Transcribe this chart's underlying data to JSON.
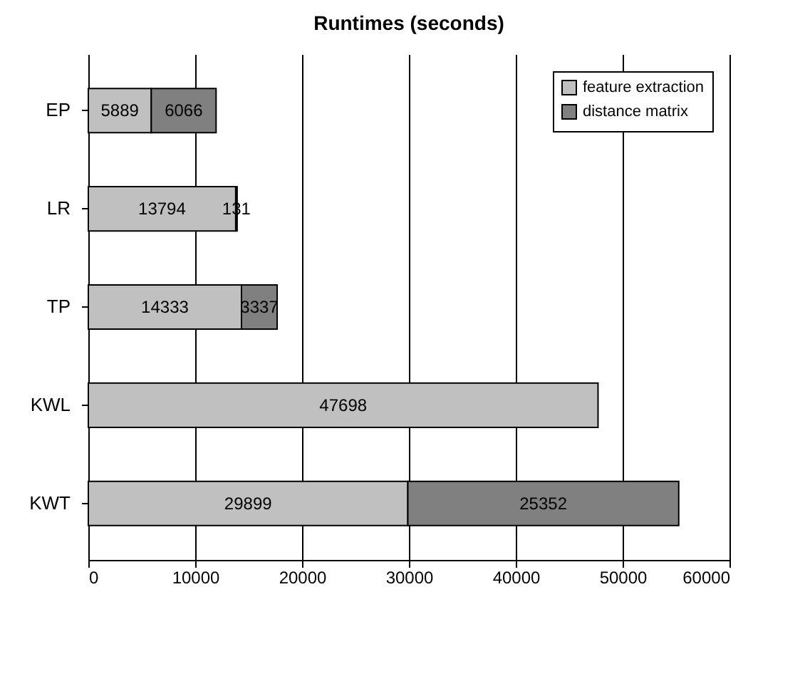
{
  "chart_data": {
    "type": "bar",
    "title": "Runtimes (seconds)",
    "orientation": "horizontal",
    "stacked": true,
    "categories": [
      "EP",
      "LR",
      "TP",
      "KWL",
      "KWT"
    ],
    "series": [
      {
        "name": "feature extraction",
        "color": "#c0c0c0",
        "values": [
          5889,
          13794,
          14333,
          47698,
          29899
        ]
      },
      {
        "name": "distance matrix",
        "color": "#808080",
        "values": [
          6066,
          131,
          3337,
          null,
          25352
        ]
      }
    ],
    "xlim": [
      0,
      60000
    ],
    "xticks": [
      0,
      10000,
      20000,
      30000,
      40000,
      50000,
      60000
    ],
    "grid": "x",
    "legend": "top right",
    "data_labels": true
  }
}
